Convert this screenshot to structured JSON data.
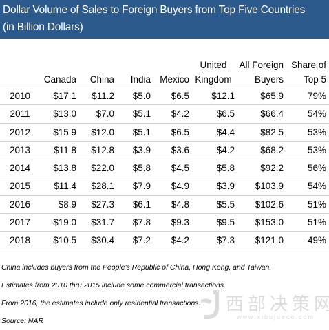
{
  "title": {
    "line1": "Dollar Volume of Sales to Foreign Buyers from Top Five Countries",
    "line2": "(in Billion Dollars)"
  },
  "table": {
    "headers": [
      {
        "line1": "",
        "line2": ""
      },
      {
        "line1": "",
        "line2": "Canada"
      },
      {
        "line1": "",
        "line2": "China"
      },
      {
        "line1": "",
        "line2": "India"
      },
      {
        "line1": "",
        "line2": "Mexico"
      },
      {
        "line1": "United",
        "line2": "Kingdom"
      },
      {
        "line1": "All Foreign",
        "line2": "Buyers"
      },
      {
        "line1": "Share of",
        "line2": "Top 5"
      }
    ],
    "rows": [
      [
        "2010",
        "$17.1",
        "$11.2",
        "$5.0",
        "$6.5",
        "$12.1",
        "$65.9",
        "79%"
      ],
      [
        "2011",
        "$13.0",
        "$7.0",
        "$5.1",
        "$4.2",
        "$6.5",
        "$66.4",
        "54%"
      ],
      [
        "2012",
        "$15.9",
        "$12.0",
        "$5.1",
        "$6.5",
        "$4.4",
        "$82.5",
        "53%"
      ],
      [
        "2013",
        "$11.8",
        "$12.8",
        "$3.9",
        "$3.6",
        "$4.2",
        "$68.2",
        "53%"
      ],
      [
        "2014",
        "$13.8",
        "$22.0",
        "$5.8",
        "$4.5",
        "$5.8",
        "$92.2",
        "56%"
      ],
      [
        "2015",
        "$11.4",
        "$28.1",
        "$7.9",
        "$4.9",
        "$3.9",
        "$103.9",
        "54%"
      ],
      [
        "2016",
        "$8.9",
        "$27.3",
        "$6.1",
        "$4.8",
        "$5.5",
        "$102.6",
        "51%"
      ],
      [
        "2017",
        "$19.0",
        "$31.7",
        "$7.8",
        "$9.3",
        "$9.5",
        "$153.0",
        "51%"
      ],
      [
        "2018",
        "$10.5",
        "$30.4",
        "$7.2",
        "$4.2",
        "$7.3",
        "$121.0",
        "49%"
      ]
    ]
  },
  "notes": [
    "China includes buyers from the People's Republic of China, Hong Kong, and Taiwan.",
    "Estimates from 2010 thru 2015 include some commercial transactions.",
    "From 2016, the estimates include only residential transactions."
  ],
  "source": "Source: NAR",
  "watermark": {
    "text": "西部决策网",
    "url": "www.xibujuece.com"
  },
  "colors": {
    "title_bg": "#2c5a8c",
    "title_text": "#ffffff"
  }
}
